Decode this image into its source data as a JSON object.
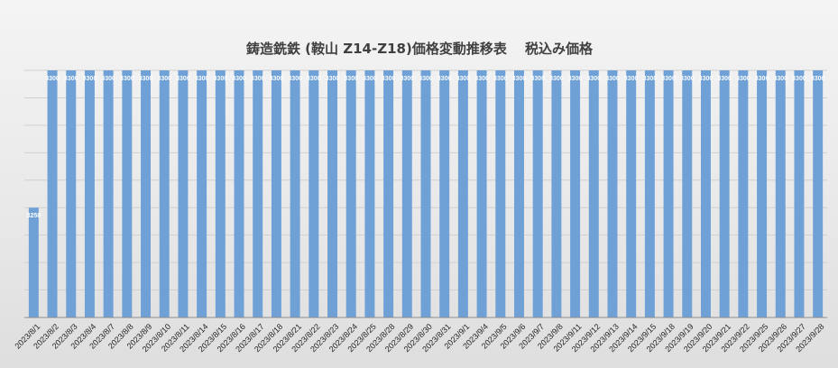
{
  "chart_data": {
    "type": "bar",
    "title": "鋳造銑鉄 (鞍山 Z14-Z18)価格変動推移表　 税込み価格",
    "xlabel": "",
    "ylabel": "",
    "ylim": [
      3210,
      3300
    ],
    "grid": true,
    "legend": "none",
    "bar_color": "#6fa1d6",
    "categories": [
      "2023/8/1",
      "2023/8/2",
      "2023/8/3",
      "2023/8/4",
      "2023/8/7",
      "2023/8/8",
      "2023/8/9",
      "2023/8/10",
      "2023/8/11",
      "2023/8/14",
      "2023/8/15",
      "2023/8/16",
      "2023/8/17",
      "2023/8/18",
      "2023/8/21",
      "2023/8/22",
      "2023/8/23",
      "2023/8/24",
      "2023/8/25",
      "2023/8/28",
      "2023/8/29",
      "2023/8/30",
      "2023/8/31",
      "2023/9/1",
      "2023/9/4",
      "2023/9/5",
      "2023/9/6",
      "2023/9/7",
      "2023/9/8",
      "2023/9/11",
      "2023/9/12",
      "2023/9/13",
      "2023/9/14",
      "2023/9/15",
      "2023/9/18",
      "2023/9/19",
      "2023/9/20",
      "2023/9/21",
      "2023/9/22",
      "2023/9/25",
      "2023/9/26",
      "2023/9/27",
      "2023/9/28"
    ],
    "values": [
      3250,
      3300,
      3300,
      3300,
      3300,
      3300,
      3300,
      3300,
      3300,
      3300,
      3300,
      3300,
      3300,
      3300,
      3300,
      3300,
      3300,
      3300,
      3300,
      3300,
      3300,
      3300,
      3300,
      3300,
      3300,
      3300,
      3300,
      3300,
      3300,
      3300,
      3300,
      3300,
      3300,
      3300,
      3300,
      3300,
      3300,
      3300,
      3300,
      3300,
      3300,
      3300,
      3300
    ]
  }
}
